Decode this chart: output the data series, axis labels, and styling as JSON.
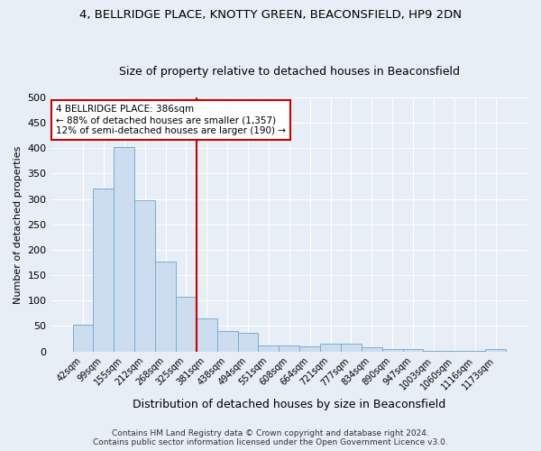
{
  "title_line1": "4, BELLRIDGE PLACE, KNOTTY GREEN, BEACONSFIELD, HP9 2DN",
  "title_line2": "Size of property relative to detached houses in Beaconsfield",
  "xlabel": "Distribution of detached houses by size in Beaconsfield",
  "ylabel": "Number of detached properties",
  "footer_line1": "Contains HM Land Registry data © Crown copyright and database right 2024.",
  "footer_line2": "Contains public sector information licensed under the Open Government Licence v3.0.",
  "bar_labels": [
    "42sqm",
    "99sqm",
    "155sqm",
    "212sqm",
    "268sqm",
    "325sqm",
    "381sqm",
    "438sqm",
    "494sqm",
    "551sqm",
    "608sqm",
    "664sqm",
    "721sqm",
    "777sqm",
    "834sqm",
    "890sqm",
    "947sqm",
    "1003sqm",
    "1060sqm",
    "1116sqm",
    "1173sqm"
  ],
  "bar_values": [
    53,
    320,
    403,
    297,
    177,
    108,
    65,
    41,
    36,
    12,
    12,
    10,
    15,
    15,
    9,
    4,
    4,
    1,
    1,
    1,
    5
  ],
  "bar_color": "#ccddf0",
  "bar_edge_color": "#7aadd4",
  "vline_x": 6,
  "vline_color": "#cc0000",
  "annotation_text": "4 BELLRIDGE PLACE: 386sqm\n← 88% of detached houses are smaller (1,357)\n12% of semi-detached houses are larger (190) →",
  "annotation_box_color": "#cc0000",
  "ylim": [
    0,
    500
  ],
  "yticks": [
    0,
    50,
    100,
    150,
    200,
    250,
    300,
    350,
    400,
    450,
    500
  ],
  "fig_bg_color": "#e8eef5",
  "plot_bg_color": "#e8eef5",
  "title_fontsize": 9.5,
  "subtitle_fontsize": 9
}
